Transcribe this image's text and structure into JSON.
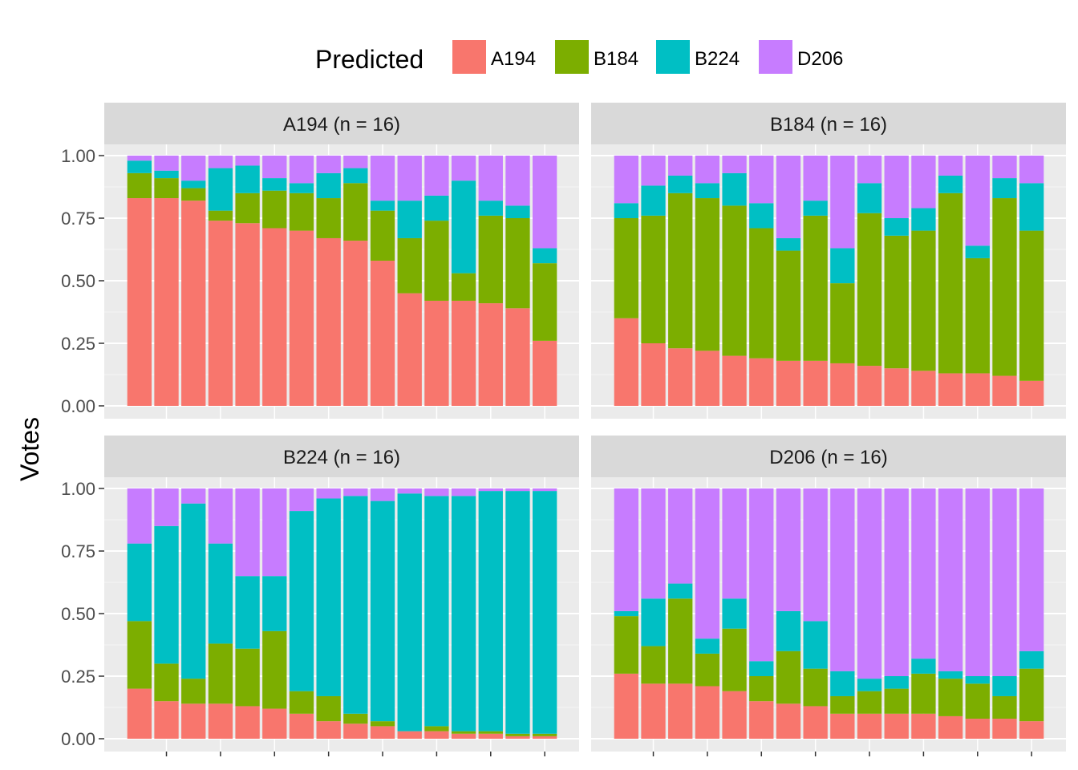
{
  "chart_data": {
    "type": "bar",
    "stacked": true,
    "ylabel": "Votes",
    "xlabel": "",
    "ylim": [
      0,
      1
    ],
    "yticks": [
      "0.00",
      "0.25",
      "0.50",
      "0.75",
      "1.00"
    ],
    "grid": true,
    "legend": {
      "title": "Predicted",
      "position": "top",
      "entries": [
        "A194",
        "B184",
        "B224",
        "D206"
      ]
    },
    "series_colors": {
      "A194": "#F8766D",
      "B184": "#7CAE00",
      "B224": "#00BFC4",
      "D206": "#C77CFF"
    },
    "facets": [
      {
        "title": "A194 (n = 16)",
        "bars": [
          {
            "A194": 0.83,
            "B184": 0.1,
            "B224": 0.05,
            "D206": 0.02
          },
          {
            "A194": 0.83,
            "B184": 0.08,
            "B224": 0.03,
            "D206": 0.06
          },
          {
            "A194": 0.82,
            "B184": 0.05,
            "B224": 0.03,
            "D206": 0.1
          },
          {
            "A194": 0.74,
            "B184": 0.04,
            "B224": 0.17,
            "D206": 0.05
          },
          {
            "A194": 0.73,
            "B184": 0.12,
            "B224": 0.11,
            "D206": 0.04
          },
          {
            "A194": 0.71,
            "B184": 0.15,
            "B224": 0.05,
            "D206": 0.09
          },
          {
            "A194": 0.7,
            "B184": 0.15,
            "B224": 0.04,
            "D206": 0.11
          },
          {
            "A194": 0.67,
            "B184": 0.16,
            "B224": 0.1,
            "D206": 0.07
          },
          {
            "A194": 0.66,
            "B184": 0.23,
            "B224": 0.06,
            "D206": 0.05
          },
          {
            "A194": 0.58,
            "B184": 0.2,
            "B224": 0.04,
            "D206": 0.18
          },
          {
            "A194": 0.45,
            "B184": 0.22,
            "B224": 0.15,
            "D206": 0.18
          },
          {
            "A194": 0.42,
            "B184": 0.32,
            "B224": 0.1,
            "D206": 0.16
          },
          {
            "A194": 0.42,
            "B184": 0.11,
            "B224": 0.37,
            "D206": 0.1
          },
          {
            "A194": 0.41,
            "B184": 0.35,
            "B224": 0.06,
            "D206": 0.18
          },
          {
            "A194": 0.39,
            "B184": 0.36,
            "B224": 0.05,
            "D206": 0.2
          },
          {
            "A194": 0.26,
            "B184": 0.31,
            "B224": 0.06,
            "D206": 0.37
          }
        ]
      },
      {
        "title": "B184 (n = 16)",
        "bars": [
          {
            "A194": 0.35,
            "B184": 0.4,
            "B224": 0.06,
            "D206": 0.19
          },
          {
            "A194": 0.25,
            "B184": 0.51,
            "B224": 0.12,
            "D206": 0.12
          },
          {
            "A194": 0.23,
            "B184": 0.62,
            "B224": 0.07,
            "D206": 0.08
          },
          {
            "A194": 0.22,
            "B184": 0.61,
            "B224": 0.06,
            "D206": 0.11
          },
          {
            "A194": 0.2,
            "B184": 0.6,
            "B224": 0.13,
            "D206": 0.07
          },
          {
            "A194": 0.19,
            "B184": 0.52,
            "B224": 0.1,
            "D206": 0.19
          },
          {
            "A194": 0.18,
            "B184": 0.44,
            "B224": 0.05,
            "D206": 0.33
          },
          {
            "A194": 0.18,
            "B184": 0.58,
            "B224": 0.06,
            "D206": 0.18
          },
          {
            "A194": 0.17,
            "B184": 0.32,
            "B224": 0.14,
            "D206": 0.37
          },
          {
            "A194": 0.16,
            "B184": 0.61,
            "B224": 0.12,
            "D206": 0.11
          },
          {
            "A194": 0.15,
            "B184": 0.53,
            "B224": 0.07,
            "D206": 0.25
          },
          {
            "A194": 0.14,
            "B184": 0.56,
            "B224": 0.09,
            "D206": 0.21
          },
          {
            "A194": 0.13,
            "B184": 0.72,
            "B224": 0.07,
            "D206": 0.08
          },
          {
            "A194": 0.13,
            "B184": 0.46,
            "B224": 0.05,
            "D206": 0.36
          },
          {
            "A194": 0.12,
            "B184": 0.71,
            "B224": 0.08,
            "D206": 0.09
          },
          {
            "A194": 0.1,
            "B184": 0.6,
            "B224": 0.19,
            "D206": 0.11
          }
        ]
      },
      {
        "title": "B224 (n = 16)",
        "bars": [
          {
            "A194": 0.2,
            "B184": 0.27,
            "B224": 0.31,
            "D206": 0.22
          },
          {
            "A194": 0.15,
            "B184": 0.15,
            "B224": 0.55,
            "D206": 0.15
          },
          {
            "A194": 0.14,
            "B184": 0.1,
            "B224": 0.7,
            "D206": 0.06
          },
          {
            "A194": 0.14,
            "B184": 0.24,
            "B224": 0.4,
            "D206": 0.22
          },
          {
            "A194": 0.13,
            "B184": 0.23,
            "B224": 0.29,
            "D206": 0.35
          },
          {
            "A194": 0.12,
            "B184": 0.31,
            "B224": 0.22,
            "D206": 0.35
          },
          {
            "A194": 0.1,
            "B184": 0.09,
            "B224": 0.72,
            "D206": 0.09
          },
          {
            "A194": 0.07,
            "B184": 0.1,
            "B224": 0.79,
            "D206": 0.04
          },
          {
            "A194": 0.06,
            "B184": 0.04,
            "B224": 0.87,
            "D206": 0.03
          },
          {
            "A194": 0.05,
            "B184": 0.02,
            "B224": 0.88,
            "D206": 0.05
          },
          {
            "A194": 0.03,
            "B184": 0.0,
            "B224": 0.95,
            "D206": 0.02
          },
          {
            "A194": 0.03,
            "B184": 0.02,
            "B224": 0.92,
            "D206": 0.03
          },
          {
            "A194": 0.02,
            "B184": 0.01,
            "B224": 0.94,
            "D206": 0.03
          },
          {
            "A194": 0.02,
            "B184": 0.01,
            "B224": 0.96,
            "D206": 0.01
          },
          {
            "A194": 0.01,
            "B184": 0.01,
            "B224": 0.97,
            "D206": 0.01
          },
          {
            "A194": 0.01,
            "B184": 0.01,
            "B224": 0.97,
            "D206": 0.01
          }
        ]
      },
      {
        "title": "D206 (n = 16)",
        "bars": [
          {
            "A194": 0.26,
            "B184": 0.23,
            "B224": 0.02,
            "D206": 0.49
          },
          {
            "A194": 0.22,
            "B184": 0.15,
            "B224": 0.19,
            "D206": 0.44
          },
          {
            "A194": 0.22,
            "B184": 0.34,
            "B224": 0.06,
            "D206": 0.38
          },
          {
            "A194": 0.21,
            "B184": 0.13,
            "B224": 0.06,
            "D206": 0.6
          },
          {
            "A194": 0.19,
            "B184": 0.25,
            "B224": 0.12,
            "D206": 0.44
          },
          {
            "A194": 0.15,
            "B184": 0.1,
            "B224": 0.06,
            "D206": 0.69
          },
          {
            "A194": 0.14,
            "B184": 0.21,
            "B224": 0.16,
            "D206": 0.49
          },
          {
            "A194": 0.13,
            "B184": 0.15,
            "B224": 0.19,
            "D206": 0.53
          },
          {
            "A194": 0.1,
            "B184": 0.07,
            "B224": 0.1,
            "D206": 0.73
          },
          {
            "A194": 0.1,
            "B184": 0.09,
            "B224": 0.05,
            "D206": 0.76
          },
          {
            "A194": 0.1,
            "B184": 0.1,
            "B224": 0.05,
            "D206": 0.75
          },
          {
            "A194": 0.1,
            "B184": 0.16,
            "B224": 0.06,
            "D206": 0.68
          },
          {
            "A194": 0.09,
            "B184": 0.15,
            "B224": 0.03,
            "D206": 0.73
          },
          {
            "A194": 0.08,
            "B184": 0.14,
            "B224": 0.03,
            "D206": 0.75
          },
          {
            "A194": 0.08,
            "B184": 0.09,
            "B224": 0.08,
            "D206": 0.75
          },
          {
            "A194": 0.07,
            "B184": 0.21,
            "B224": 0.07,
            "D206": 0.65
          }
        ]
      }
    ]
  }
}
